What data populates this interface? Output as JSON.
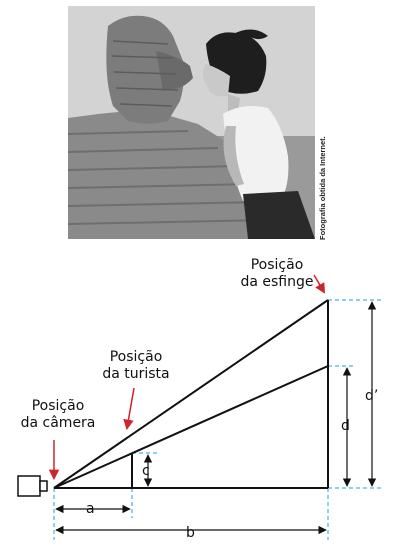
{
  "photo": {
    "credit": "Fotografia obtida da Internet."
  },
  "labels": {
    "camera": [
      "Posição",
      "da câmera"
    ],
    "turista": [
      "Posição",
      "da turista"
    ],
    "esfinge": [
      "Posição",
      "da esfinge"
    ]
  },
  "dimensions": {
    "a": "a",
    "b": "b",
    "c": "c",
    "d": "d",
    "d_prime": "d’"
  },
  "colors": {
    "arrow": "#d0242b",
    "guide": "#1aa3d9",
    "line": "#111111"
  }
}
